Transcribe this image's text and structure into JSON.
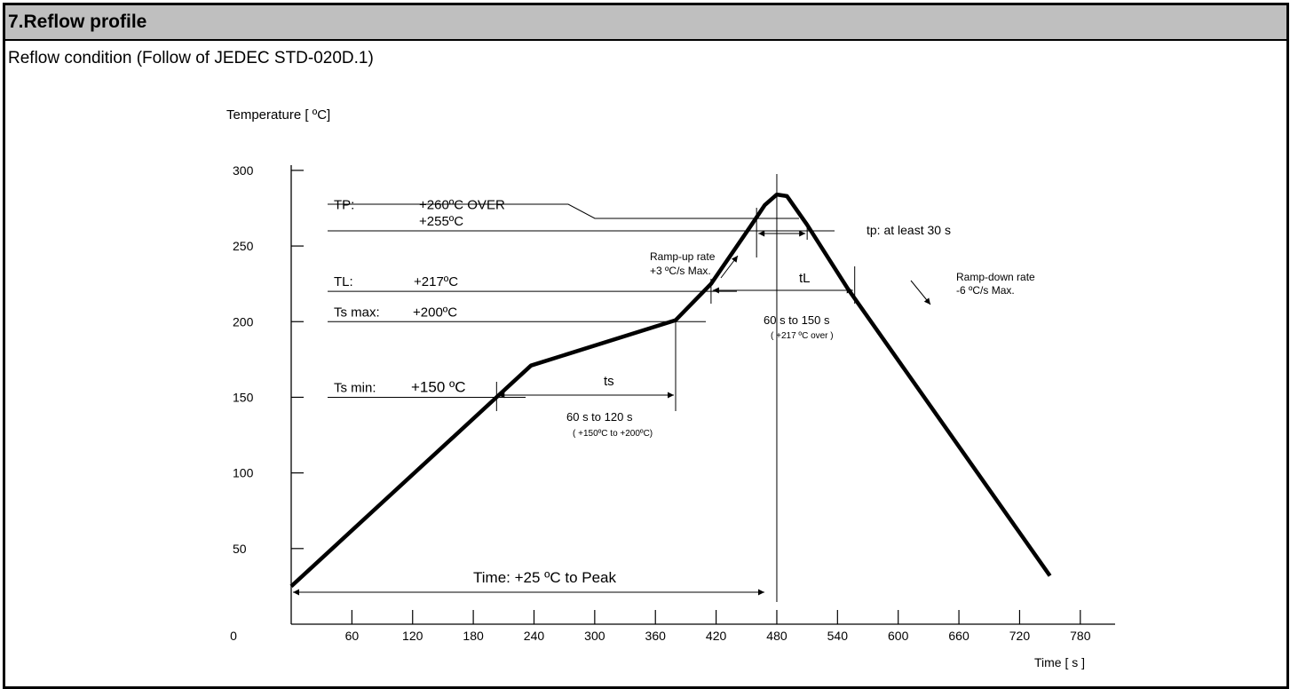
{
  "header": {
    "section_title": "7.Reflow profile",
    "subtitle": "Reflow condition (Follow of JEDEC STD-020D.1)"
  },
  "chart_data": {
    "type": "line",
    "ylabel": "Temperature [ ºC]",
    "xlabel": "Time [ s ]",
    "xlim": [
      -10,
      785
    ],
    "ylim": [
      0,
      310
    ],
    "x_ticks": [
      0,
      60,
      120,
      180,
      240,
      300,
      360,
      420,
      480,
      540,
      600,
      660,
      720,
      780
    ],
    "x_tick_labels": [
      "0",
      "60",
      "120",
      "180",
      "240",
      "300",
      "360",
      "420",
      "480",
      "540",
      "600",
      "660",
      "720",
      "780"
    ],
    "y_ticks": [
      50,
      100,
      150,
      200,
      250,
      300
    ],
    "y_tick_labels": [
      "50",
      "100",
      "150",
      "200",
      "250",
      "300"
    ],
    "series": [
      {
        "x": [
          0,
          203,
          237,
          380,
          415,
          455,
          468,
          480,
          490,
          510,
          550,
          750
        ],
        "y": [
          25,
          150,
          171,
          201,
          225,
          264,
          277,
          284,
          283,
          264,
          222,
          32
        ]
      }
    ],
    "reference_lines": [
      {
        "label": "TP:",
        "value_text": "+260ºC  OVER",
        "y": 271
      },
      {
        "label": "",
        "value_text": "+255ºC",
        "y": 260
      },
      {
        "label": "TL:",
        "value_text": "+217ºC",
        "y": 220
      },
      {
        "label": "Ts max:",
        "value_text": "+200ºC",
        "y": 200
      },
      {
        "label": "Ts min:",
        "value_text": "+150 ºC",
        "y": 150
      }
    ],
    "annotations": {
      "ts_label": "ts",
      "ts_range": "60 s  to  120 s",
      "ts_cond": "( +150ºC to +200ºC)",
      "tl_label": "tL",
      "tl_range": "60 s  to  150 s",
      "tl_cond": "( +217 ºC  over )",
      "tp_label": "tp: at least 30 s",
      "rampup_l1": "Ramp-up rate",
      "rampup_l2": "+3 ºC/s Max.",
      "rampdown_l1": "Ramp-down rate",
      "rampdown_l2": "-6 ºC/s Max.",
      "peak_time": "Time: +25 ºC to Peak"
    },
    "spans": {
      "ts": [
        203,
        380
      ],
      "tl": [
        415,
        557
      ],
      "tp": [
        460,
        510
      ],
      "peak_time": [
        0,
        480
      ]
    },
    "grid": false,
    "legend": "none"
  }
}
